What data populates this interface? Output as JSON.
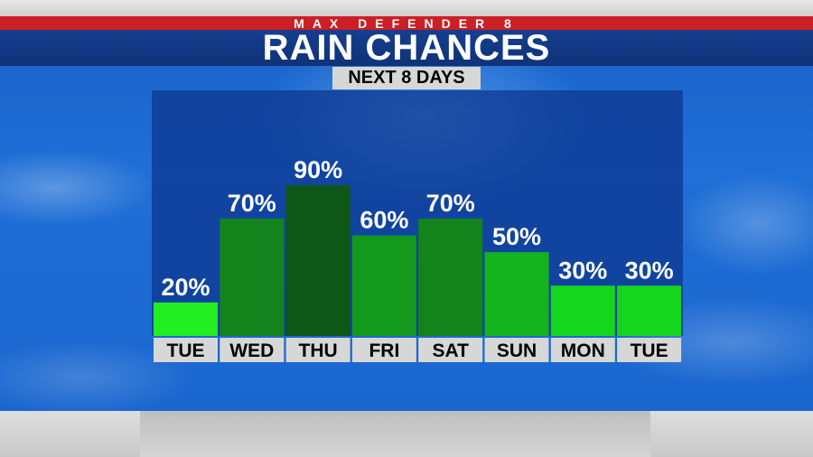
{
  "header": {
    "brand": "MAX DEFENDER 8",
    "title": "RAIN CHANCES",
    "subtitle": "NEXT 8 DAYS"
  },
  "colors": {
    "brand_bar": "#cc1f26",
    "title_bar": "#123a86",
    "bar_fills": [
      "#22ee22",
      "#13841b",
      "#0f5716",
      "#139a1d",
      "#13841b",
      "#14b41f",
      "#13d61d",
      "#13d61d"
    ],
    "label_box": "#d7d7d7"
  },
  "chart_data": {
    "type": "bar",
    "categories": [
      "TUE",
      "WED",
      "THU",
      "FRI",
      "SAT",
      "SUN",
      "MON",
      "TUE"
    ],
    "values": [
      20,
      70,
      90,
      60,
      70,
      50,
      30,
      30
    ],
    "value_labels": [
      "20%",
      "70%",
      "90%",
      "60%",
      "70%",
      "50%",
      "30%",
      "30%"
    ],
    "title": "RAIN CHANCES",
    "subtitle": "NEXT 8 DAYS",
    "xlabel": "",
    "ylabel": "",
    "ylim": [
      0,
      100
    ],
    "grid": false,
    "legend": "none"
  }
}
